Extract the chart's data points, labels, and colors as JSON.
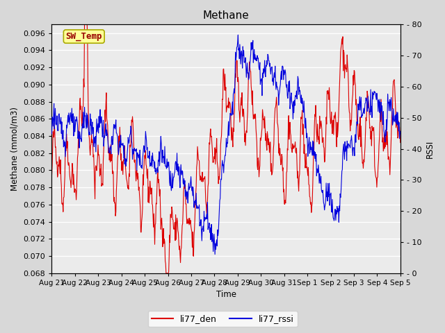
{
  "title": "Methane",
  "xlabel": "Time",
  "ylabel_left": "Methane (mmol/m3)",
  "ylabel_right": "RSSI",
  "ylim_left": [
    0.068,
    0.097
  ],
  "ylim_right": [
    0,
    80
  ],
  "yticks_left": [
    0.068,
    0.07,
    0.072,
    0.074,
    0.076,
    0.078,
    0.08,
    0.082,
    0.084,
    0.086,
    0.088,
    0.09,
    0.092,
    0.094,
    0.096
  ],
  "yticks_right": [
    0,
    10,
    20,
    30,
    40,
    50,
    60,
    70,
    80
  ],
  "bg_color": "#d8d8d8",
  "plot_bg_color": "#ebebeb",
  "annotation_text": "SW_Temp",
  "annotation_box_color": "#ffff99",
  "annotation_text_color": "#990000",
  "line_red_color": "#dd0000",
  "line_blue_color": "#0000dd",
  "legend_red": "li77_den",
  "legend_blue": "li77_rssi",
  "x_tick_labels": [
    "Aug 21",
    "Aug 22",
    "Aug 23",
    "Aug 24",
    "Aug 25",
    "Aug 26",
    "Aug 27",
    "Aug 28",
    "Aug 29",
    "Aug 30",
    "Aug 31",
    "Sep 1",
    "Sep 2",
    "Sep 3",
    "Sep 4",
    "Sep 5"
  ],
  "n_points": 800,
  "seed": 42
}
